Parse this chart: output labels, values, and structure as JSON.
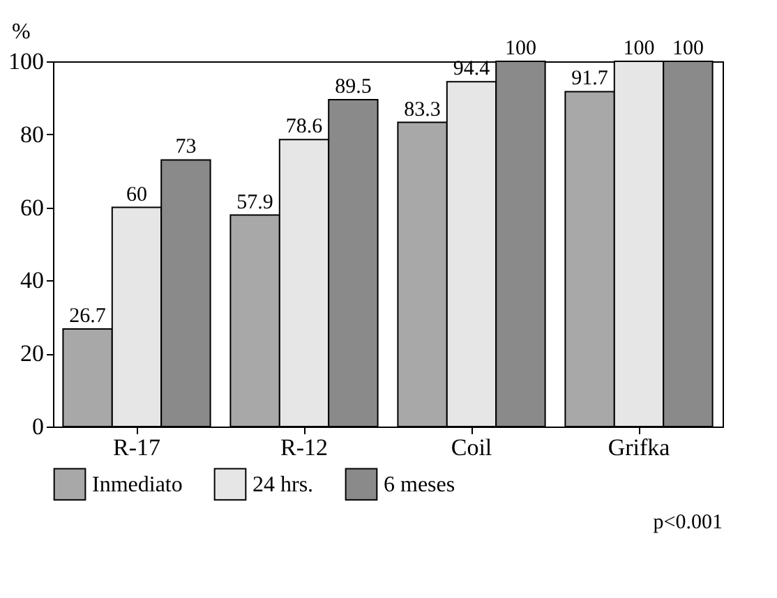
{
  "chart_data": {
    "type": "bar",
    "ylabel": "%",
    "categories": [
      "R-17",
      "R-12",
      "Coil",
      "Grifka"
    ],
    "series": [
      {
        "name": "Inmediato",
        "color": "#a8a8a8",
        "values": [
          26.7,
          57.9,
          83.3,
          91.7
        ]
      },
      {
        "name": "24 hrs.",
        "color": "#e6e6e6",
        "values": [
          60,
          78.6,
          94.4,
          100
        ]
      },
      {
        "name": "6 meses",
        "color": "#8a8a8a",
        "values": [
          73,
          89.5,
          100,
          100
        ]
      }
    ],
    "ylim": [
      0,
      100
    ],
    "yticks": [
      0,
      20,
      40,
      60,
      80,
      100
    ],
    "data_labels": true,
    "legend": "bottom",
    "grid": false,
    "annotations": [
      "p<0.001"
    ]
  }
}
